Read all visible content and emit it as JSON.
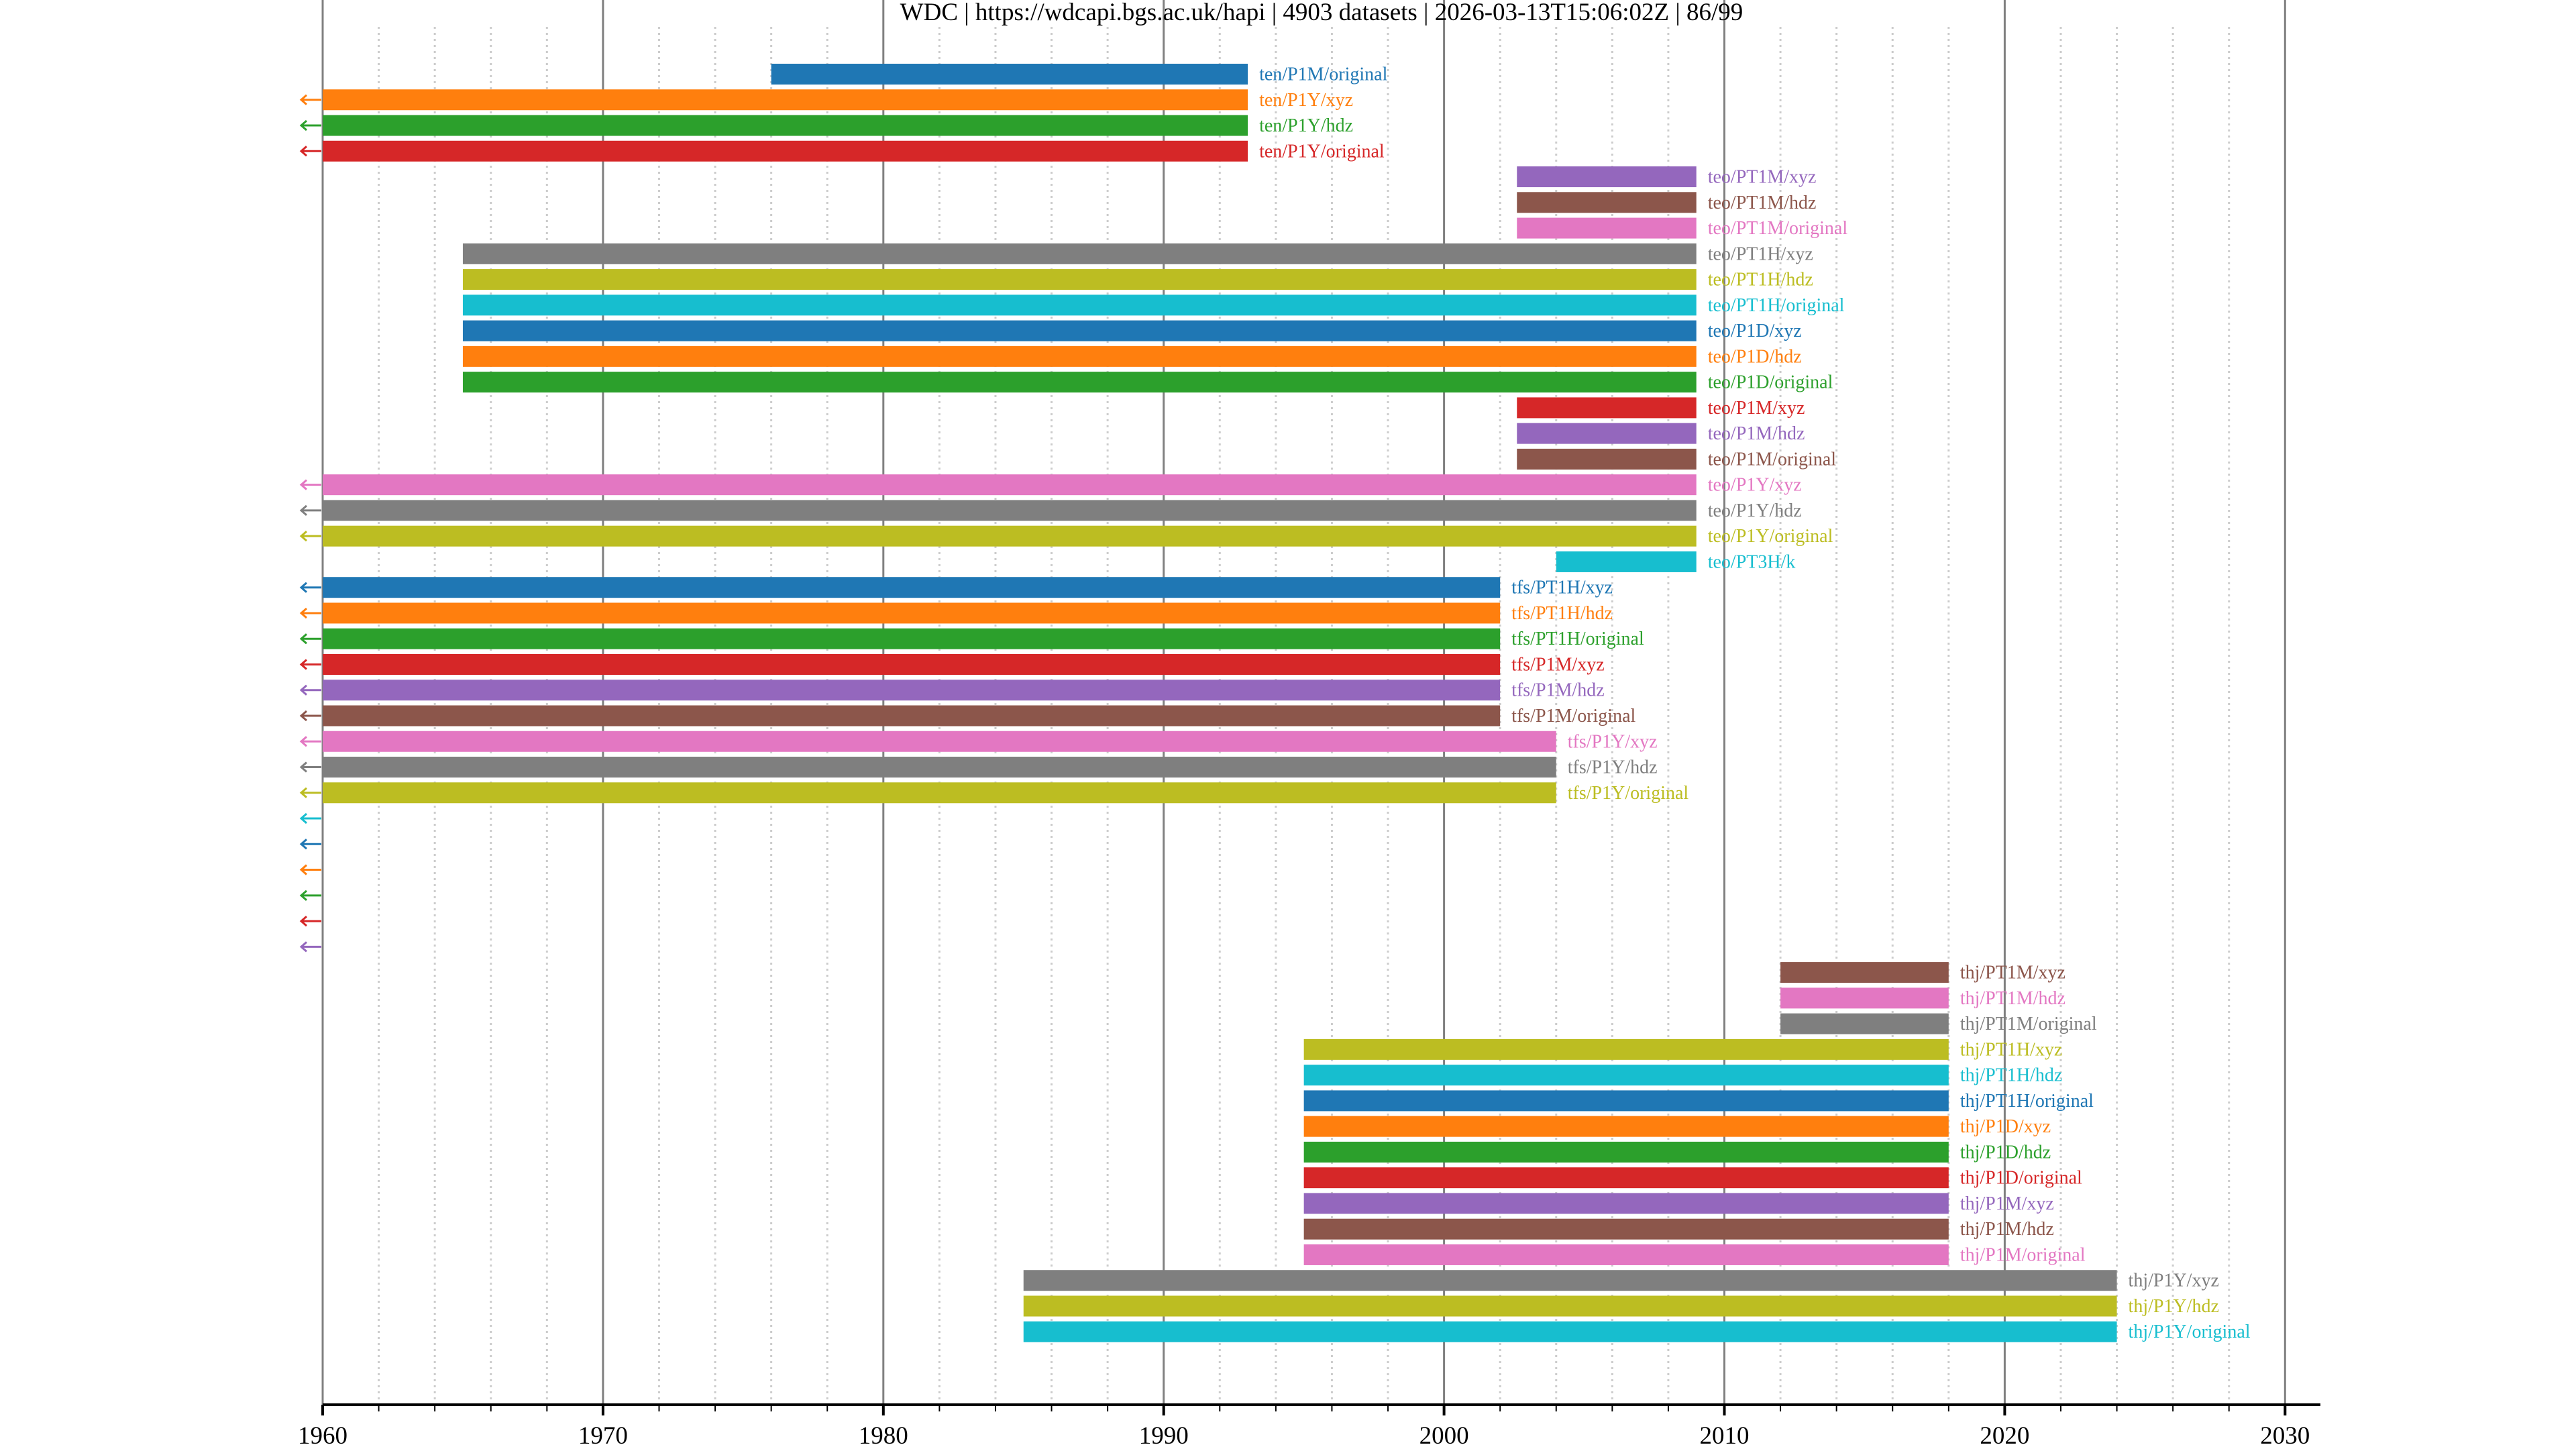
{
  "chart_data": {
    "type": "timeline",
    "title": "WDC | https://wdcapi.bgs.ac.uk/hapi | 4903 datasets | 2026-03-13T15:06:02Z | 86/99",
    "xlabel": "",
    "ylabel": "",
    "xlim": [
      1960,
      2031.25
    ],
    "x_ticks": [
      "1960",
      "1970",
      "1980",
      "1990",
      "2000",
      "2010",
      "2020",
      "2030"
    ],
    "x_minor_step_years": 2,
    "grid": {
      "major": "solid",
      "minor": "dotted"
    },
    "palette": [
      "#1f77b4",
      "#ff7f0e",
      "#2ca02c",
      "#d62728",
      "#9467bd",
      "#8c564b",
      "#e377c2",
      "#7f7f7f",
      "#bcbd22",
      "#17becf"
    ],
    "truncated_start_marker": "←",
    "rows": [
      {
        "label": "ten/P1M/original",
        "start": 1976.0,
        "end": 1993.0
      },
      {
        "label": "ten/P1Y/xyz",
        "start": null,
        "end": 1993.0,
        "truncated": true
      },
      {
        "label": "ten/P1Y/hdz",
        "start": null,
        "end": 1993.0,
        "truncated": true
      },
      {
        "label": "ten/P1Y/original",
        "start": null,
        "end": 1993.0,
        "truncated": true
      },
      {
        "label": "teo/PT1M/xyz",
        "start": 2002.6,
        "end": 2009.0
      },
      {
        "label": "teo/PT1M/hdz",
        "start": 2002.6,
        "end": 2009.0
      },
      {
        "label": "teo/PT1M/original",
        "start": 2002.6,
        "end": 2009.0
      },
      {
        "label": "teo/PT1H/xyz",
        "start": 1965.0,
        "end": 2009.0
      },
      {
        "label": "teo/PT1H/hdz",
        "start": 1965.0,
        "end": 2009.0
      },
      {
        "label": "teo/PT1H/original",
        "start": 1965.0,
        "end": 2009.0
      },
      {
        "label": "teo/P1D/xyz",
        "start": 1965.0,
        "end": 2009.0
      },
      {
        "label": "teo/P1D/hdz",
        "start": 1965.0,
        "end": 2009.0
      },
      {
        "label": "teo/P1D/original",
        "start": 1965.0,
        "end": 2009.0
      },
      {
        "label": "teo/P1M/xyz",
        "start": 2002.6,
        "end": 2009.0
      },
      {
        "label": "teo/P1M/hdz",
        "start": 2002.6,
        "end": 2009.0
      },
      {
        "label": "teo/P1M/original",
        "start": 2002.6,
        "end": 2009.0
      },
      {
        "label": "teo/P1Y/xyz",
        "start": null,
        "end": 2009.0,
        "truncated": true
      },
      {
        "label": "teo/P1Y/hdz",
        "start": null,
        "end": 2009.0,
        "truncated": true
      },
      {
        "label": "teo/P1Y/original",
        "start": null,
        "end": 2009.0,
        "truncated": true
      },
      {
        "label": "teo/PT3H/k",
        "start": 2004.0,
        "end": 2009.0
      },
      {
        "label": "tfs/PT1H/xyz",
        "start": null,
        "end": 2002.0,
        "truncated": true
      },
      {
        "label": "tfs/PT1H/hdz",
        "start": null,
        "end": 2002.0,
        "truncated": true
      },
      {
        "label": "tfs/PT1H/original",
        "start": null,
        "end": 2002.0,
        "truncated": true
      },
      {
        "label": "tfs/P1M/xyz",
        "start": null,
        "end": 2002.0,
        "truncated": true
      },
      {
        "label": "tfs/P1M/hdz",
        "start": null,
        "end": 2002.0,
        "truncated": true
      },
      {
        "label": "tfs/P1M/original",
        "start": null,
        "end": 2002.0,
        "truncated": true
      },
      {
        "label": "tfs/P1Y/xyz",
        "start": null,
        "end": 2004.0,
        "truncated": true
      },
      {
        "label": "tfs/P1Y/hdz",
        "start": null,
        "end": 2004.0,
        "truncated": true
      },
      {
        "label": "tfs/P1Y/original",
        "start": null,
        "end": 2004.0,
        "truncated": true
      },
      {
        "label": "",
        "start": null,
        "end": null,
        "truncated": true
      },
      {
        "label": "",
        "start": null,
        "end": null,
        "truncated": true
      },
      {
        "label": "",
        "start": null,
        "end": null,
        "truncated": true
      },
      {
        "label": "",
        "start": null,
        "end": null,
        "truncated": true
      },
      {
        "label": "",
        "start": null,
        "end": null,
        "truncated": true
      },
      {
        "label": "",
        "start": null,
        "end": null,
        "truncated": true
      },
      {
        "label": "thj/PT1M/xyz",
        "start": 2012.0,
        "end": 2018.0
      },
      {
        "label": "thj/PT1M/hdz",
        "start": 2012.0,
        "end": 2018.0
      },
      {
        "label": "thj/PT1M/original",
        "start": 2012.0,
        "end": 2018.0
      },
      {
        "label": "thj/PT1H/xyz",
        "start": 1995.0,
        "end": 2018.0
      },
      {
        "label": "thj/PT1H/hdz",
        "start": 1995.0,
        "end": 2018.0
      },
      {
        "label": "thj/PT1H/original",
        "start": 1995.0,
        "end": 2018.0
      },
      {
        "label": "thj/P1D/xyz",
        "start": 1995.0,
        "end": 2018.0
      },
      {
        "label": "thj/P1D/hdz",
        "start": 1995.0,
        "end": 2018.0
      },
      {
        "label": "thj/P1D/original",
        "start": 1995.0,
        "end": 2018.0
      },
      {
        "label": "thj/P1M/xyz",
        "start": 1995.0,
        "end": 2018.0
      },
      {
        "label": "thj/P1M/hdz",
        "start": 1995.0,
        "end": 2018.0
      },
      {
        "label": "thj/P1M/original",
        "start": 1995.0,
        "end": 2018.0
      },
      {
        "label": "thj/P1Y/xyz",
        "start": 1985.0,
        "end": 2024.0
      },
      {
        "label": "thj/P1Y/hdz",
        "start": 1985.0,
        "end": 2024.0
      },
      {
        "label": "thj/P1Y/original",
        "start": 1985.0,
        "end": 2024.0
      }
    ]
  }
}
